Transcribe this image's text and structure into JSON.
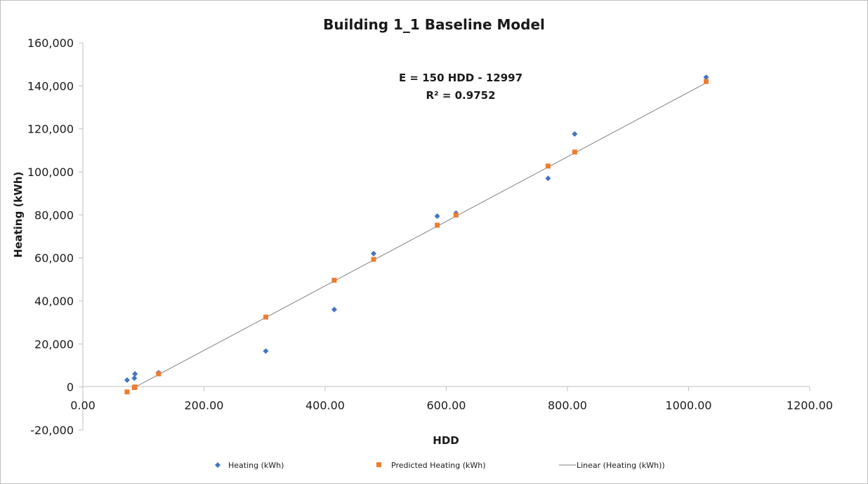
{
  "chart_data": {
    "type": "scatter",
    "title": "Building 1_1 Baseline Model",
    "xlabel": "HDD",
    "ylabel": "Heating (kWh)",
    "xlim": [
      0,
      1200
    ],
    "ylim": [
      -20000,
      160000
    ],
    "x_ticks": [
      "0.00",
      "200.00",
      "400.00",
      "600.00",
      "800.00",
      "1000.00",
      "1200.00"
    ],
    "y_ticks": [
      "-20,000",
      "0",
      "20,000",
      "40,000",
      "60,000",
      "80,000",
      "100,000",
      "120,000",
      "140,000",
      "160,000"
    ],
    "series": [
      {
        "name": "Heating (kWh)",
        "marker": "diamond",
        "color": "#4472C4",
        "points": [
          [
            73,
            3200
          ],
          [
            85,
            4100
          ],
          [
            86,
            6100
          ],
          [
            125,
            6600
          ],
          [
            302,
            16700
          ],
          [
            415,
            36000
          ],
          [
            480,
            62000
          ],
          [
            585,
            79400
          ],
          [
            616,
            80800
          ],
          [
            768,
            97000
          ],
          [
            812,
            117600
          ],
          [
            1029,
            144000
          ]
        ]
      },
      {
        "name": "Predicted Heating (kWh)",
        "marker": "square",
        "color": "#ED7D31",
        "points": [
          [
            73,
            -2300
          ],
          [
            85,
            -300
          ],
          [
            86,
            0
          ],
          [
            125,
            6100
          ],
          [
            302,
            32500
          ],
          [
            415,
            49600
          ],
          [
            480,
            59300
          ],
          [
            585,
            75200
          ],
          [
            616,
            79900
          ],
          [
            768,
            102700
          ],
          [
            812,
            109200
          ],
          [
            1029,
            142000
          ]
        ]
      }
    ],
    "trendline": {
      "name": "Linear (Heating (kWh))",
      "slope": 150,
      "intercept": -12997,
      "x_range": [
        86,
        1029
      ],
      "color": "#808080"
    },
    "annotation": {
      "equation": "E = 150 HDD - 12997",
      "r_squared": "R² = 0.9752"
    },
    "legend_position": "bottom",
    "grid": false
  }
}
